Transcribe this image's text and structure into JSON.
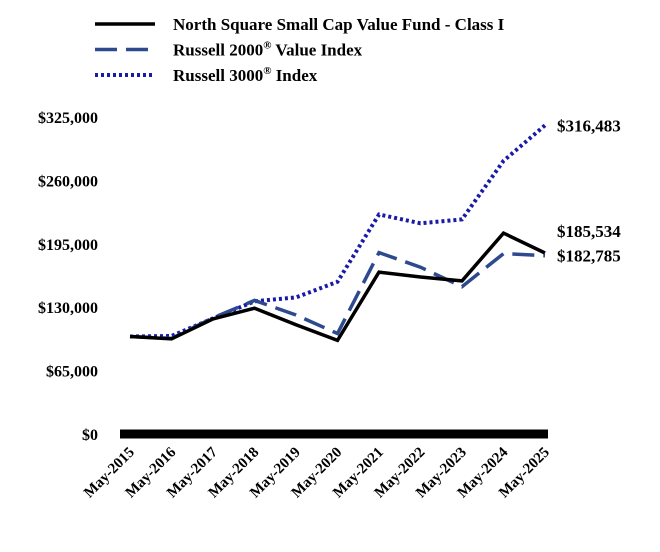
{
  "chart_data": {
    "type": "line",
    "title": "",
    "xlabel": "",
    "ylabel": "",
    "categories": [
      "May-2015",
      "May-2016",
      "May-2017",
      "May-2018",
      "May-2019",
      "May-2020",
      "May-2021",
      "May-2022",
      "May-2023",
      "May-2024",
      "May-2025"
    ],
    "yticks": [
      "$0",
      "$65,000",
      "$130,000",
      "$195,000",
      "$260,000",
      "$325,000"
    ],
    "ylim": [
      0,
      325000
    ],
    "grid": false,
    "legend_position": "top",
    "series": [
      {
        "name": "North Square Small Cap Value Fund - Class I",
        "style": "solid",
        "color": "#000000",
        "values": [
          100000,
          97500,
          118000,
          129000,
          112000,
          96000,
          166000,
          161000,
          157000,
          206000,
          185534
        ],
        "end_label": "$185,534"
      },
      {
        "name": "Russell 2000",
        "name_suffix": " Value Index",
        "style": "dashed",
        "color": "#2e4a8e",
        "values": [
          100000,
          98000,
          119000,
          137000,
          122000,
          103000,
          186000,
          171000,
          151000,
          185000,
          182785
        ],
        "end_label": "$182,785"
      },
      {
        "name": "Russell 3000",
        "name_suffix": " Index",
        "style": "dotted",
        "color": "#1a1aa8",
        "values": [
          100000,
          100500,
          118500,
          136000,
          140000,
          156000,
          225000,
          216000,
          220000,
          280000,
          316483
        ],
        "end_label": "$316,483"
      }
    ]
  }
}
